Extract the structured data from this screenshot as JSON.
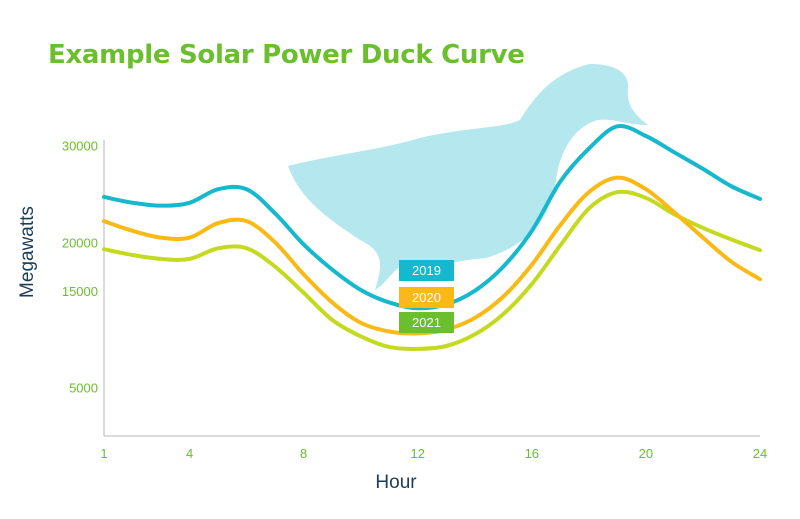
{
  "chart_data": {
    "type": "line",
    "title": "Example Solar Power Duck Curve",
    "xlabel": "Hour",
    "ylabel": "Megawatts",
    "x_ticks": [
      1,
      4,
      8,
      12,
      16,
      20,
      24
    ],
    "y_ticks": [
      5000,
      15000,
      20000,
      30000
    ],
    "xlim": [
      1,
      24
    ],
    "ylim": [
      0,
      31000
    ],
    "grid": false,
    "series": [
      {
        "name": "2019",
        "color": "#15b8cc",
        "x": [
          1,
          2,
          3,
          4,
          5,
          6,
          7,
          8,
          9,
          10,
          11,
          12,
          13,
          14,
          15,
          16,
          17,
          18,
          19,
          20,
          21,
          22,
          23,
          24
        ],
        "values": [
          24700,
          24100,
          23800,
          24100,
          25500,
          25500,
          23000,
          19800,
          17200,
          15100,
          13800,
          13200,
          13600,
          15000,
          17500,
          21200,
          26300,
          29700,
          32000,
          31000,
          29300,
          27600,
          25800,
          24500
        ]
      },
      {
        "name": "2020",
        "color": "#fbb915",
        "x": [
          1,
          2,
          3,
          4,
          5,
          6,
          7,
          8,
          9,
          10,
          11,
          12,
          13,
          14,
          15,
          16,
          17,
          18,
          19,
          20,
          21,
          22,
          23,
          24
        ],
        "values": [
          22200,
          21200,
          20500,
          20500,
          22000,
          22200,
          20000,
          16700,
          13800,
          11700,
          10800,
          10600,
          11000,
          12200,
          14400,
          17700,
          21800,
          25200,
          26700,
          25500,
          23100,
          20500,
          18000,
          16200
        ]
      },
      {
        "name": "2021",
        "color": "#c3da1f",
        "x": [
          1,
          2,
          3,
          4,
          5,
          6,
          7,
          8,
          9,
          10,
          11,
          12,
          13,
          14,
          15,
          16,
          17,
          18,
          19,
          20,
          21,
          22,
          23,
          24
        ],
        "values": [
          19300,
          18700,
          18300,
          18300,
          19400,
          19400,
          17500,
          14800,
          12000,
          10300,
          9200,
          9000,
          9300,
          10500,
          12600,
          15700,
          19700,
          23500,
          25200,
          24600,
          22900,
          21500,
          20300,
          19200
        ]
      }
    ],
    "annotations": [
      "2019",
      "2020",
      "2021"
    ]
  },
  "colors": {
    "title": "#6bbf2e",
    "ticks": "#6bbf2e",
    "axis_label": "#1d3c56",
    "axis_line": "#b7b7b7",
    "duck": "#b5e8ee",
    "badge_2019": "#15b8cc",
    "badge_2020": "#fbb915",
    "badge_2021": "#6bbf2e"
  },
  "icons": {
    "background": "duck-silhouette-icon"
  }
}
